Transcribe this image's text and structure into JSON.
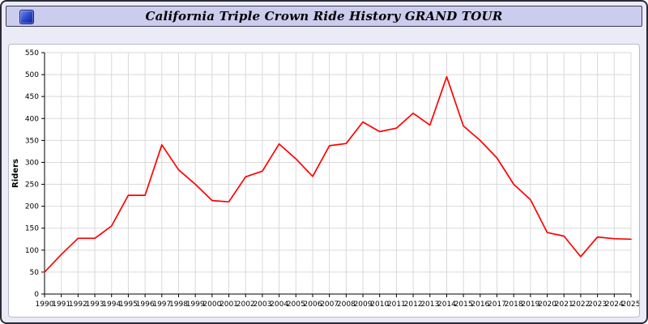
{
  "window": {
    "title": "California Triple Crown Ride History GRAND TOUR",
    "app_icon": "blue-app-icon"
  },
  "colors": {
    "page_bg": "#ebebf7",
    "titlebar_bg": "#ccccee",
    "panel_bg": "#ffffff",
    "grid": "#d9d9d9",
    "axis": "#000000",
    "line": "#ff0000"
  },
  "chart_data": {
    "type": "line",
    "title": "California Triple Crown Ride History GRAND TOUR",
    "xlabel": "",
    "ylabel": "Riders",
    "ylim": [
      0,
      550
    ],
    "ytick_step": 50,
    "grid": true,
    "legend_position": "none",
    "line_color": "#ff0000",
    "categories": [
      "1990",
      "1991",
      "1992",
      "1993",
      "1994",
      "1995",
      "1996",
      "1997",
      "1998",
      "1999",
      "2000",
      "2001",
      "2002",
      "2003",
      "2004",
      "2005",
      "2006",
      "2007",
      "2008",
      "2009",
      "2010",
      "2011",
      "2012",
      "2013",
      "2014",
      "2015",
      "2016",
      "2017",
      "2018",
      "2019",
      "2020",
      "2021",
      "2022",
      "2023",
      "2024",
      "2025"
    ],
    "values": [
      50,
      90,
      127,
      127,
      155,
      225,
      225,
      340,
      283,
      250,
      213,
      210,
      267,
      280,
      342,
      308,
      268,
      338,
      343,
      392,
      370,
      378,
      412,
      385,
      495,
      383,
      350,
      310,
      250,
      215,
      140,
      132,
      85,
      130,
      126,
      125
    ]
  }
}
